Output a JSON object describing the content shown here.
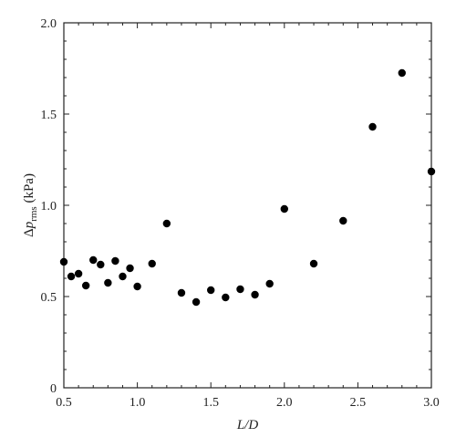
{
  "chart_data": {
    "type": "scatter",
    "xlabel": "L/D",
    "ylabel_prefix": "Δ",
    "ylabel_var": "p",
    "ylabel_sub": "rms",
    "ylabel_unit": " (kPa)",
    "xlim": [
      0.5,
      3.0
    ],
    "ylim": [
      0,
      2.0
    ],
    "x_ticks": [
      0.5,
      1.0,
      1.5,
      2.0,
      2.5,
      3.0
    ],
    "x_tick_labels": [
      "0.5",
      "1.0",
      "1.5",
      "2.0",
      "2.5",
      "3.0"
    ],
    "y_ticks": [
      0,
      0.5,
      1.0,
      1.5,
      2.0
    ],
    "y_tick_labels": [
      "0",
      "0.5",
      "1.0",
      "1.5",
      "2.0"
    ],
    "grid": false,
    "marker_color": "#000000",
    "series": [
      {
        "points": [
          {
            "x": 0.5,
            "y": 0.69
          },
          {
            "x": 0.55,
            "y": 0.61
          },
          {
            "x": 0.6,
            "y": 0.625
          },
          {
            "x": 0.65,
            "y": 0.56
          },
          {
            "x": 0.7,
            "y": 0.7
          },
          {
            "x": 0.75,
            "y": 0.675
          },
          {
            "x": 0.8,
            "y": 0.575
          },
          {
            "x": 0.85,
            "y": 0.695
          },
          {
            "x": 0.9,
            "y": 0.61
          },
          {
            "x": 0.95,
            "y": 0.655
          },
          {
            "x": 1.0,
            "y": 0.555
          },
          {
            "x": 1.1,
            "y": 0.68
          },
          {
            "x": 1.2,
            "y": 0.9
          },
          {
            "x": 1.3,
            "y": 0.52
          },
          {
            "x": 1.4,
            "y": 0.47
          },
          {
            "x": 1.5,
            "y": 0.535
          },
          {
            "x": 1.6,
            "y": 0.495
          },
          {
            "x": 1.7,
            "y": 0.54
          },
          {
            "x": 1.8,
            "y": 0.51
          },
          {
            "x": 1.9,
            "y": 0.57
          },
          {
            "x": 2.0,
            "y": 0.98
          },
          {
            "x": 2.2,
            "y": 0.68
          },
          {
            "x": 2.4,
            "y": 0.915
          },
          {
            "x": 2.6,
            "y": 1.43
          },
          {
            "x": 2.8,
            "y": 1.725
          },
          {
            "x": 3.0,
            "y": 1.185
          }
        ]
      }
    ]
  }
}
